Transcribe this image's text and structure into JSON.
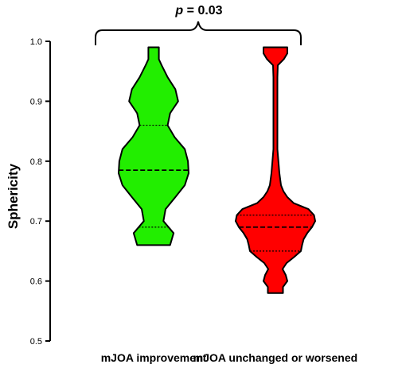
{
  "chart_data": {
    "type": "violin",
    "ylabel": "Sphericity",
    "ylim": [
      0.5,
      1.0
    ],
    "yticks": [
      "0.5",
      "0.6",
      "0.7",
      "0.8",
      "0.9",
      "1.0"
    ],
    "annotation": {
      "p_symbol": "p",
      "p_rest": " = 0.03",
      "text": "p = 0.03"
    },
    "series": [
      {
        "name": "mJOA improvement",
        "color": "#22ee00",
        "min": 0.66,
        "max": 0.99,
        "median": 0.785,
        "q1": 0.69,
        "q3": 0.86,
        "density_y": [
          0.66,
          0.68,
          0.7,
          0.72,
          0.74,
          0.76,
          0.78,
          0.8,
          0.82,
          0.84,
          0.86,
          0.88,
          0.9,
          0.92,
          0.94,
          0.96,
          0.97,
          0.99
        ],
        "density_halfwidth": [
          0.47,
          0.57,
          0.28,
          0.34,
          0.62,
          0.89,
          1.0,
          0.98,
          0.89,
          0.6,
          0.4,
          0.47,
          0.7,
          0.62,
          0.4,
          0.23,
          0.15,
          0.15
        ]
      },
      {
        "name": "mJOA unchanged or worsened",
        "color": "#ff0000",
        "min": 0.58,
        "max": 0.99,
        "median": 0.69,
        "q1": 0.65,
        "q3": 0.71,
        "density_y": [
          0.58,
          0.59,
          0.6,
          0.61,
          0.62,
          0.63,
          0.64,
          0.65,
          0.66,
          0.67,
          0.68,
          0.69,
          0.7,
          0.71,
          0.72,
          0.73,
          0.74,
          0.75,
          0.76,
          0.78,
          0.82,
          0.86,
          0.9,
          0.94,
          0.96,
          0.97,
          0.98,
          0.99
        ],
        "density_halfwidth": [
          0.19,
          0.19,
          0.3,
          0.26,
          0.18,
          0.28,
          0.47,
          0.64,
          0.67,
          0.71,
          0.8,
          0.92,
          1.0,
          0.97,
          0.83,
          0.46,
          0.3,
          0.2,
          0.14,
          0.1,
          0.05,
          0.05,
          0.05,
          0.05,
          0.06,
          0.21,
          0.3,
          0.3
        ]
      }
    ],
    "grid": false,
    "legend": "none"
  }
}
